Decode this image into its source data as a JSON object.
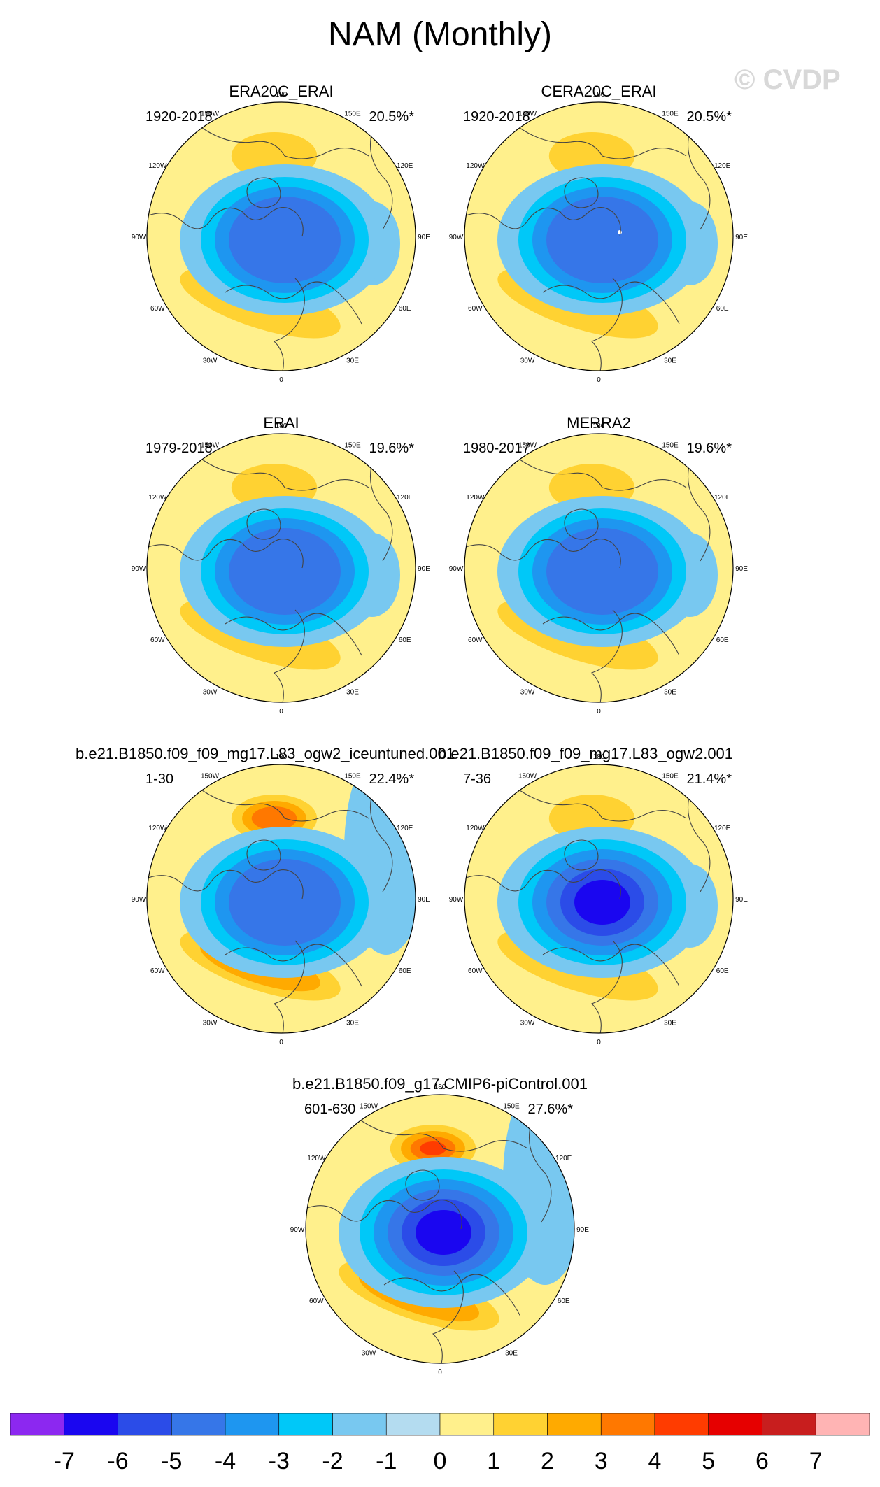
{
  "title": "NAM (Monthly)",
  "watermark": "© CVDP",
  "lon_labels": [
    "180",
    "150E",
    "120E",
    "90E",
    "60E",
    "30E",
    "0",
    "30W",
    "60W",
    "90W",
    "120W",
    "150W"
  ],
  "panels": [
    {
      "title": "ERA20C_ERAI",
      "years": "1920-2018",
      "pct": "20.5%*",
      "pos_max": 2,
      "neg_min": -4,
      "atlantic": -1,
      "pacific_neg": 0,
      "white_dot": false
    },
    {
      "title": "CERA20C_ERAI",
      "years": "1920-2018",
      "pct": "20.5%*",
      "pos_max": 2,
      "neg_min": -4,
      "atlantic": -1,
      "pacific_neg": 0,
      "white_dot": true
    },
    {
      "title": "ERAI",
      "years": "1979-2018",
      "pct": "19.6%*",
      "pos_max": 2,
      "neg_min": -4,
      "atlantic": -1,
      "pacific_neg": 0,
      "white_dot": false
    },
    {
      "title": "MERRA2",
      "years": "1980-2017",
      "pct": "19.6%*",
      "pos_max": 2,
      "neg_min": -4,
      "atlantic": -1,
      "pacific_neg": 0,
      "white_dot": false
    },
    {
      "title": "b.e21.B1850.f09_f09_mg17.L83_ogw2_iceuntuned.001",
      "years": "1-30",
      "pct": "22.4%*",
      "pos_max": 4,
      "neg_min": -4,
      "atlantic": -1,
      "pacific_neg": -1,
      "white_dot": false
    },
    {
      "title": "b.e21.B1850.f09_f09_mg17.L83_ogw2.001",
      "years": "7-36",
      "pct": "21.4%*",
      "pos_max": 2,
      "neg_min": -6,
      "atlantic": -1,
      "pacific_neg": 0,
      "white_dot": false
    },
    {
      "title": "b.e21.B1850.f09_g17.CMIP6-piControl.001",
      "years": "601-630",
      "pct": "27.6%*",
      "pos_max": 5,
      "neg_min": -6,
      "atlantic": -1,
      "pacific_neg": -1,
      "white_dot": false
    }
  ],
  "chart_data": {
    "type": "heatmap",
    "title": "NAM (Monthly)",
    "projection": "north polar stereographic",
    "colorbar": {
      "ticks": [
        "-7",
        "-6",
        "-5",
        "-4",
        "-3",
        "-2",
        "-1",
        "0",
        "1",
        "2",
        "3",
        "4",
        "5",
        "6",
        "7"
      ],
      "levels": [
        -7,
        -6,
        -5,
        -4,
        -3,
        -2,
        -1,
        0,
        1,
        2,
        3,
        4,
        5,
        6,
        7
      ],
      "colors": [
        "#8c28f0",
        "#1a06f0",
        "#2b4ce8",
        "#3676e8",
        "#1e96f0",
        "#00c8f8",
        "#78c8f0",
        "#b4dcf0",
        "#fff08c",
        "#ffd232",
        "#ffaa00",
        "#ff7800",
        "#ff3c00",
        "#e60000",
        "#c81e1e",
        "#ffb4b4"
      ]
    }
  }
}
